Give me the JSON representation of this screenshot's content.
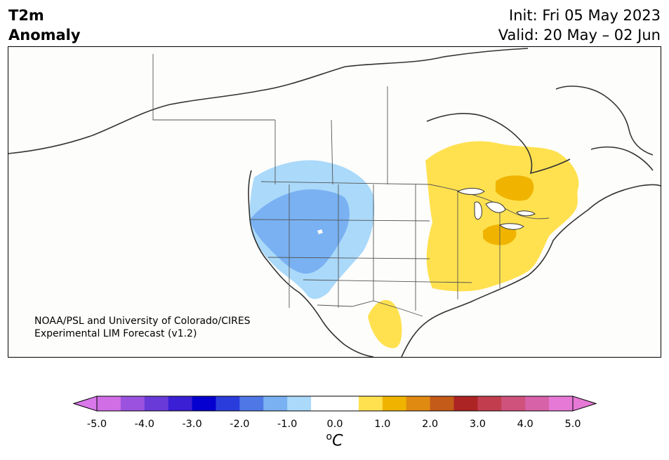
{
  "header": {
    "variable": "T2m",
    "quantity": "Anomaly",
    "init": "Init: Fri 05 May 2023",
    "valid": "Valid: 20 May – 02 Jun"
  },
  "map": {
    "region": "North America",
    "credit_line1": "NOAA/PSL and University of Colorado/CIRES",
    "credit_line2": "Experimental LIM Forecast (v1.2)"
  },
  "colorbar": {
    "unit_symbol": "o",
    "unit_letter": "C",
    "tick_labels": [
      "-5.0",
      "-4.0",
      "-3.0",
      "-2.0",
      "-1.0",
      "0.0",
      "1.0",
      "2.0",
      "3.0",
      "4.0",
      "5.0"
    ],
    "levels": [
      -5.0,
      -4.5,
      -4.0,
      -3.5,
      -3.0,
      -2.5,
      -2.0,
      -1.5,
      -1.0,
      -0.5,
      0.5,
      1.0,
      1.5,
      2.0,
      2.5,
      3.0,
      3.5,
      4.0,
      4.5,
      5.0
    ],
    "colors": [
      "#d16ee6",
      "#9b52de",
      "#6a3ad9",
      "#3a1fd4",
      "#0500cf",
      "#2a3ddc",
      "#4f78e6",
      "#79b1f2",
      "#aad9fa",
      "#ffffff",
      "#ffe14f",
      "#f0b400",
      "#e08a12",
      "#c45b18",
      "#ad2424",
      "#c23e4f",
      "#cf527c",
      "#d862a8",
      "#e679d6"
    ],
    "under_color": "#d878ea",
    "over_color": "#e679d6"
  },
  "anomaly_regions": [
    {
      "name": "northwest-cool",
      "category": "-1.0 to -0.5",
      "color": "#aad9fa"
    },
    {
      "name": "great-basin-cool",
      "category": "-1.5 to -1.0",
      "color": "#79b1f2"
    },
    {
      "name": "east-warm",
      "category": "0.5 to 1.0",
      "color": "#ffe14f"
    },
    {
      "name": "ontario-warm",
      "category": "1.0 to 1.5",
      "color": "#f0b400"
    },
    {
      "name": "ohio-warm",
      "category": "1.0 to 1.5",
      "color": "#f0b400"
    },
    {
      "name": "mexico-warm",
      "category": "0.5 to 1.0",
      "color": "#ffe14f"
    }
  ]
}
